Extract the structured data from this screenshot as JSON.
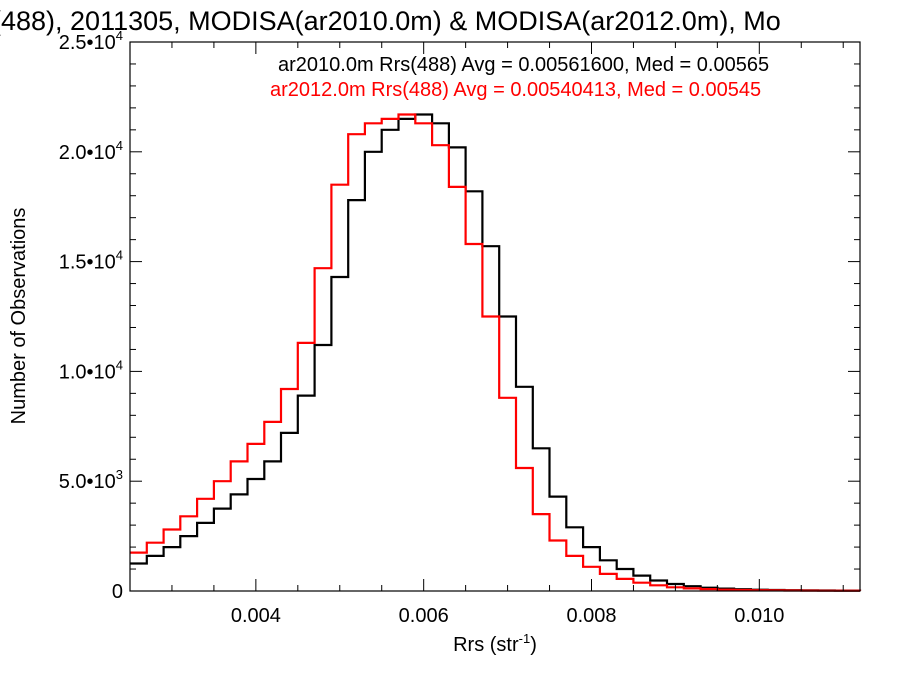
{
  "chart_data": {
    "type": "line",
    "title": "(488), 2011305, MODISA(ar2010.0m) & MODISA(ar2012.0m), Mo",
    "xlabel": "Rrs (str",
    "xlabel_sup": "-1",
    "xlabel_end": ")",
    "ylabel": "Number of Observations",
    "xlim": [
      0.0025,
      0.0112
    ],
    "ylim": [
      0,
      25000
    ],
    "x_ticks": [
      0.004,
      0.006,
      0.008,
      0.01
    ],
    "x_tick_labels": [
      "0.004",
      "0.006",
      "0.008",
      "0.010"
    ],
    "y_ticks": [
      {
        "value": 0,
        "base": "0",
        "exp": ""
      },
      {
        "value": 5000,
        "base": "5.0•10",
        "exp": "3"
      },
      {
        "value": 10000,
        "base": "1.0•10",
        "exp": "4"
      },
      {
        "value": 15000,
        "base": "1.5•10",
        "exp": "4"
      },
      {
        "value": 20000,
        "base": "2.0•10",
        "exp": "4"
      },
      {
        "value": 25000,
        "base": "2.5•10",
        "exp": "4"
      }
    ],
    "series": [
      {
        "name": "ar2010.0m Rrs(488) Avg = 0.00561600, Med = 0.00565",
        "color": "#000000",
        "x": [
          0.0025,
          0.0027,
          0.0029,
          0.0031,
          0.0033,
          0.0035,
          0.0037,
          0.0039,
          0.0041,
          0.0043,
          0.0045,
          0.0047,
          0.0049,
          0.0051,
          0.0053,
          0.0055,
          0.0057,
          0.0059,
          0.0061,
          0.0063,
          0.0065,
          0.0067,
          0.0069,
          0.0071,
          0.0073,
          0.0075,
          0.0077,
          0.0079,
          0.0081,
          0.0083,
          0.0085,
          0.0087,
          0.0089,
          0.0091,
          0.0093,
          0.0095,
          0.0097,
          0.0099,
          0.0101,
          0.0103,
          0.0105,
          0.0107,
          0.0109,
          0.0112
        ],
        "y": [
          1250,
          1600,
          2000,
          2500,
          3100,
          3750,
          4400,
          5100,
          5900,
          7200,
          8900,
          11200,
          14300,
          17800,
          20000,
          21000,
          21500,
          21700,
          21300,
          20200,
          18200,
          15700,
          12500,
          9300,
          6500,
          4300,
          2900,
          2000,
          1400,
          1000,
          700,
          480,
          320,
          220,
          150,
          110,
          80,
          60,
          45,
          35,
          28,
          22,
          18,
          15
        ]
      },
      {
        "name": "ar2012.0m Rrs(488) Avg = 0.00540413, Med = 0.00545",
        "color": "#ff0000",
        "x": [
          0.0025,
          0.0027,
          0.0029,
          0.0031,
          0.0033,
          0.0035,
          0.0037,
          0.0039,
          0.0041,
          0.0043,
          0.0045,
          0.0047,
          0.0049,
          0.0051,
          0.0053,
          0.0055,
          0.0057,
          0.0059,
          0.0061,
          0.0063,
          0.0065,
          0.0067,
          0.0069,
          0.0071,
          0.0073,
          0.0075,
          0.0077,
          0.0079,
          0.0081,
          0.0083,
          0.0085,
          0.0087,
          0.0089,
          0.0091,
          0.0093,
          0.0095,
          0.0097,
          0.0099,
          0.0101,
          0.0103,
          0.0105,
          0.0107,
          0.0109,
          0.0112
        ],
        "y": [
          1750,
          2200,
          2800,
          3400,
          4200,
          5000,
          5900,
          6700,
          7700,
          9200,
          11300,
          14700,
          18500,
          20800,
          21300,
          21500,
          21700,
          21300,
          20300,
          18400,
          15800,
          12500,
          8800,
          5600,
          3500,
          2300,
          1600,
          1100,
          780,
          550,
          380,
          260,
          170,
          120,
          85,
          60,
          45,
          35,
          28,
          22,
          18,
          15,
          12,
          10
        ]
      }
    ],
    "legend_placement": "top-right",
    "grid": false
  }
}
